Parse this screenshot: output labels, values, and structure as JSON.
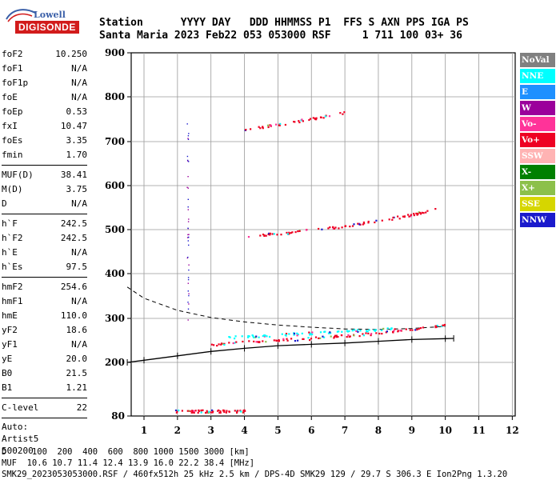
{
  "logo": {
    "line1": "Lowell",
    "line2": "DIGISONDE"
  },
  "header": {
    "labels": "Station      YYYY DAY   DDD HHMMSS P1  FFS S AXN PPS IGA PS",
    "values": "Santa Maria 2023 Feb22 053 053000 RSF     1 711 100 03+ 36"
  },
  "params": {
    "g1": [
      {
        "k": "foF2",
        "v": "10.250"
      },
      {
        "k": "foF1",
        "v": "N/A"
      },
      {
        "k": "foF1p",
        "v": "N/A"
      },
      {
        "k": "foE",
        "v": "N/A"
      },
      {
        "k": "foEp",
        "v": "0.53"
      },
      {
        "k": "fxI",
        "v": "10.47"
      },
      {
        "k": "foEs",
        "v": "3.35"
      },
      {
        "k": "fmin",
        "v": "1.70"
      }
    ],
    "g2": [
      {
        "k": "MUF(D)",
        "v": "38.41"
      },
      {
        "k": "M(D)",
        "v": "3.75"
      },
      {
        "k": "D",
        "v": "N/A"
      }
    ],
    "g3": [
      {
        "k": "h`F",
        "v": "242.5"
      },
      {
        "k": "h`F2",
        "v": "242.5"
      },
      {
        "k": "h`E",
        "v": "N/A"
      },
      {
        "k": "h`Es",
        "v": "97.5"
      }
    ],
    "g4": [
      {
        "k": "hmF2",
        "v": "254.6"
      },
      {
        "k": "hmF1",
        "v": "N/A"
      },
      {
        "k": "hmE",
        "v": "110.0"
      },
      {
        "k": "yF2",
        "v": "18.6"
      },
      {
        "k": "yF1",
        "v": "N/A"
      },
      {
        "k": "yE",
        "v": "20.0"
      },
      {
        "k": "B0",
        "v": "21.5"
      },
      {
        "k": "B1",
        "v": "1.21"
      }
    ],
    "g5": [
      {
        "k": "C-level",
        "v": "22"
      }
    ],
    "auto": [
      "Auto:",
      "Artist5",
      "500200"
    ]
  },
  "legend": [
    {
      "label": "NoVal",
      "bg": "#808080",
      "fg": "#ffffff"
    },
    {
      "label": "NNE",
      "bg": "#00ffff",
      "fg": "#ffffff"
    },
    {
      "label": "E",
      "bg": "#1e90ff",
      "fg": "#ffffff"
    },
    {
      "label": "W",
      "bg": "#9b009b",
      "fg": "#ffffff"
    },
    {
      "label": "Vo-",
      "bg": "#ff3399",
      "fg": "#ffffff"
    },
    {
      "label": "Vo+",
      "bg": "#ee0022",
      "fg": "#ffffff"
    },
    {
      "label": "SSW",
      "bg": "#ffb3b3",
      "fg": "#ffffff"
    },
    {
      "label": "X-",
      "bg": "#008000",
      "fg": "#ffffff"
    },
    {
      "label": "X+",
      "bg": "#8cc04a",
      "fg": "#ffffff"
    },
    {
      "label": "SSE",
      "bg": "#d6d600",
      "fg": "#ffffff"
    },
    {
      "label": "NNW",
      "bg": "#1a1acc",
      "fg": "#ffffff"
    }
  ],
  "footer": {
    "line1": "D     100  200  400  600  800 1000 1500 3000 [km]",
    "line2": "MUF  10.6 10.7 11.4 12.4 13.9 16.0 22.2 38.4 [MHz]",
    "line3": "SMK29_2023053053000.RSF / 460fx512h 25 kHz 2.5 km / DPS-4D SMK29 129 / 29.7 S 306.3 E Ion2Png 1.3.20"
  },
  "chart_data": {
    "type": "scatter",
    "xlabel": "",
    "ylabel": "",
    "xlim": [
      0.5,
      12
    ],
    "ylim": [
      80,
      900
    ],
    "xticks": [
      "1",
      "2",
      "3",
      "4",
      "5",
      "6",
      "7",
      "8",
      "9",
      "10",
      "11",
      "12"
    ],
    "yticks": [
      "80",
      "200",
      "300",
      "400",
      "500",
      "600",
      "700",
      "800",
      "900"
    ],
    "grid": true,
    "traces": [
      {
        "name": "F2 O-trace",
        "color": "#ee0022",
        "x": [
          3.0,
          4.0,
          5.0,
          6.0,
          7.0,
          8.0,
          9.0,
          10.0
        ],
        "y": [
          240,
          248,
          252,
          256,
          262,
          268,
          276,
          285
        ]
      },
      {
        "name": "F2 X-trace",
        "color": "#00ffff",
        "x": [
          3.5,
          4.5,
          5.5,
          6.5,
          7.5,
          8.5
        ],
        "y": [
          258,
          262,
          266,
          270,
          274,
          279
        ]
      },
      {
        "name": "2F O-trace",
        "color": "#ee0022",
        "x": [
          4.0,
          5.0,
          6.0,
          7.0,
          8.0,
          9.0,
          10.0
        ],
        "y": [
          486,
          492,
          500,
          510,
          522,
          535,
          555
        ]
      },
      {
        "name": "3F trace",
        "color": "#ee0022",
        "x": [
          4.0,
          5.0,
          6.0,
          7.0
        ],
        "y": [
          728,
          740,
          752,
          766
        ]
      },
      {
        "name": "Es trace",
        "color": "#ee0022",
        "x": [
          1.9,
          2.5,
          3.0,
          3.5,
          4.0
        ],
        "y": [
          92,
          92,
          92,
          92,
          92
        ]
      }
    ],
    "profile": {
      "x": [
        0.5,
        1.0,
        2.0,
        3.0,
        4.0,
        5.0,
        6.0,
        7.0,
        8.0,
        9.0,
        10.0,
        10.25
      ],
      "y": [
        200,
        205,
        215,
        225,
        232,
        238,
        241,
        244,
        248,
        252,
        254,
        254.6
      ]
    },
    "muf_curve": {
      "x": [
        0.5,
        1.0,
        2.0,
        3.0,
        4.0,
        5.0,
        6.0,
        7.0,
        8.0,
        9.0,
        10.0
      ],
      "y": [
        370,
        345,
        318,
        302,
        292,
        285,
        280,
        276,
        275,
        277,
        282
      ]
    }
  }
}
